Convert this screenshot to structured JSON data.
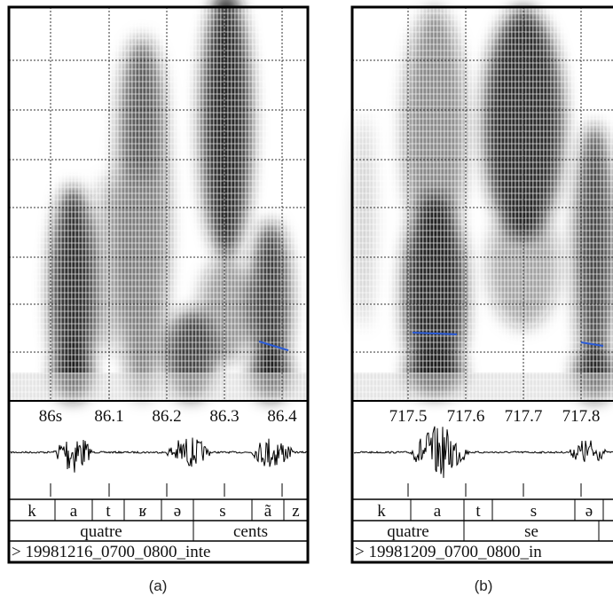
{
  "panels": [
    {
      "caption": "(a)",
      "time_ticks": [
        "86s",
        "86.1",
        "86.2",
        "86.3",
        "86.4"
      ],
      "phones": [
        "k",
        "a",
        "t",
        "ʁ",
        "ə",
        "s",
        "ã",
        "z"
      ],
      "words": [
        "quatre",
        "cents"
      ],
      "file": "> 19981216_0700_0800_inte"
    },
    {
      "caption": "(b)",
      "time_ticks": [
        "717.5",
        "717.6",
        "717.7",
        "717.8"
      ],
      "phones": [
        "k",
        "a",
        "t",
        "s",
        "ə"
      ],
      "words": [
        "quatre",
        "se"
      ],
      "file": "> 19981209_0700_0800_in"
    }
  ]
}
